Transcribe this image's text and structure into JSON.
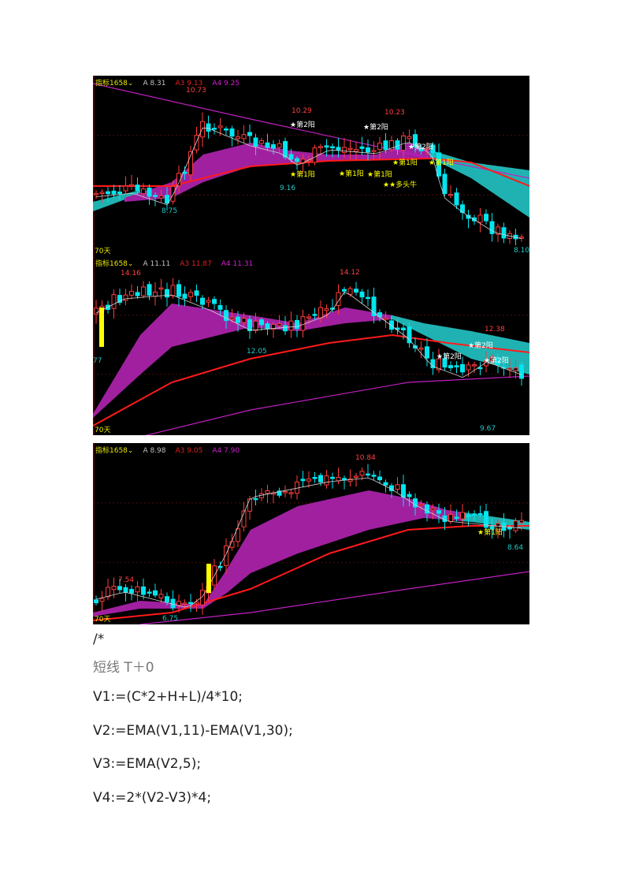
{
  "colors": {
    "bg": "#000000",
    "up": "#ff3b3b",
    "down": "#00e5ee",
    "band_bull": "#a020a0",
    "band_bear": "#20b2b2",
    "ma_red": "#ff1a1a",
    "ma_magenta": "#c020c0",
    "ma_white": "#d0d0d0",
    "yellow": "#ffff00"
  },
  "charts": [
    {
      "indicator": "指标1658",
      "chevron": "⌄",
      "a": "A 8.31",
      "a3": "A3 9.13",
      "a4": "A4 9.25",
      "days": "70天",
      "labels": [
        {
          "t": "10.73",
          "c": "red"
        },
        {
          "t": "10.29",
          "c": "red"
        },
        {
          "t": "10.23",
          "c": "red"
        },
        {
          "t": "★第2阳",
          "c": "white"
        },
        {
          "t": "★第2阳",
          "c": "white"
        },
        {
          "t": "★第2阳",
          "c": "white"
        },
        {
          "t": "★第1阳",
          "c": "yellow"
        },
        {
          "t": "★第1阳",
          "c": "yellow"
        },
        {
          "t": "★第1阳",
          "c": "yellow"
        },
        {
          "t": "★第1阳",
          "c": "yellow"
        },
        {
          "t": "★第1阳",
          "c": "yellow"
        },
        {
          "t": "★★多头牛",
          "c": "yellow"
        },
        {
          "t": "9.16",
          "c": "cyan"
        },
        {
          "t": "8.75",
          "c": "cyan"
        },
        {
          "t": "8.10",
          "c": "cyan"
        }
      ]
    },
    {
      "indicator": "指标1658",
      "chevron": "⌄",
      "a": "A 11.11",
      "a3": "A3 11.87",
      "a4": "A4 11.31",
      "days": "70天",
      "labels": [
        {
          "t": "14.16",
          "c": "red"
        },
        {
          "t": "14.12",
          "c": "red"
        },
        {
          "t": "12.38",
          "c": "red"
        },
        {
          "t": "★第2阳",
          "c": "white"
        },
        {
          "t": "★第2阳",
          "c": "white"
        },
        {
          "t": "★第2阳",
          "c": "white"
        },
        {
          "t": "12.05",
          "c": "cyan"
        },
        {
          "t": "9.67",
          "c": "cyan"
        },
        {
          "t": "77",
          "c": "cyan"
        }
      ]
    },
    {
      "indicator": "指标1658",
      "chevron": "⌄",
      "a": "A 8.98",
      "a3": "A3 9.05",
      "a4": "A4 7.90",
      "days": "70天",
      "labels": [
        {
          "t": "10.84",
          "c": "red"
        },
        {
          "t": "7.54",
          "c": "red"
        },
        {
          "t": "★第1阳",
          "c": "yellow"
        },
        {
          "t": "6.75",
          "c": "cyan"
        },
        {
          "t": "8.64",
          "c": "cyan"
        }
      ]
    }
  ],
  "text": {
    "comment_open": "/*",
    "title": "短线 T＋0",
    "lines": [
      "V1:=(C*2+H+L)/4*10;",
      "V2:=EMA(V1,11)-EMA(V1,30);",
      "V3:=EMA(V2,5);",
      "V4:=2*(V2-V3)*4;"
    ]
  }
}
